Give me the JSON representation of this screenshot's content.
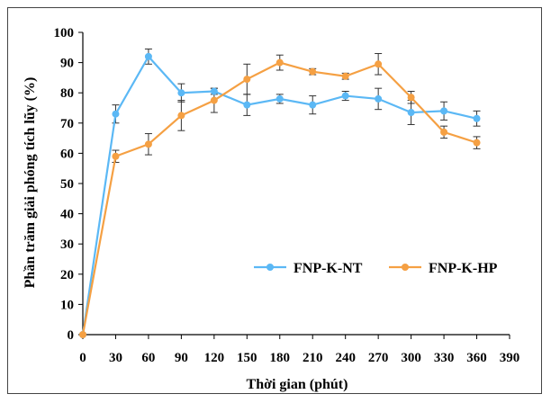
{
  "chart_data": {
    "type": "line",
    "title": "",
    "xlabel": "Thời gian (phút)",
    "ylabel": "Phần trăm giải phóng tích lũy (%)",
    "x": [
      0,
      30,
      60,
      90,
      120,
      150,
      180,
      210,
      240,
      270,
      300,
      330,
      360
    ],
    "xticks": [
      0,
      30,
      60,
      90,
      120,
      150,
      180,
      210,
      240,
      270,
      300,
      330,
      360,
      390
    ],
    "yticks": [
      0,
      10,
      20,
      30,
      40,
      50,
      60,
      70,
      80,
      90,
      100
    ],
    "xlim": [
      0,
      390
    ],
    "ylim": [
      0,
      100
    ],
    "grid": false,
    "legend_position": "lower-right",
    "series": [
      {
        "name": "FNP-K-NT",
        "color": "#5bb8f5",
        "values": [
          0,
          73,
          92,
          80,
          80.5,
          76,
          78,
          76,
          79,
          78,
          73.5,
          74,
          71.5
        ],
        "errors": [
          0,
          3,
          2.5,
          3,
          1,
          3.5,
          1.5,
          3,
          1.5,
          3.5,
          4,
          3,
          2.5
        ]
      },
      {
        "name": "FNP-K-HP",
        "color": "#f5a043",
        "values": [
          0,
          59,
          63,
          72.5,
          77.5,
          84.5,
          90,
          87,
          85.5,
          89.5,
          78.5,
          67,
          63.5
        ],
        "errors": [
          0,
          2,
          3.5,
          5,
          4,
          5,
          2.5,
          1,
          1,
          3.5,
          2,
          2,
          2
        ]
      }
    ]
  }
}
